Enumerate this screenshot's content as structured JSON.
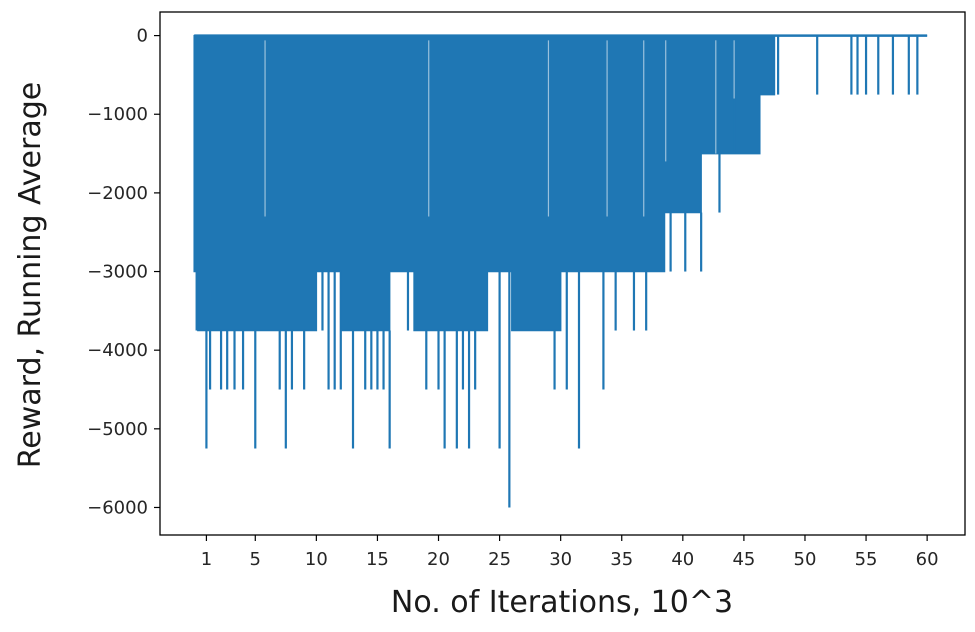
{
  "chart_data": {
    "type": "line",
    "title": "",
    "xlabel": "No. of Iterations, 10^3",
    "ylabel": "Reward, Running Average",
    "xlim": [
      -2.8,
      63.1
    ],
    "ylim": [
      -6350,
      300
    ],
    "xticks": [
      1,
      5,
      10,
      15,
      20,
      25,
      30,
      35,
      40,
      45,
      50,
      55,
      60
    ],
    "yticks": [
      0,
      -1000,
      -2000,
      -3000,
      -4000,
      -5000,
      -6000
    ],
    "xtick_labels": [
      "1",
      "5",
      "10",
      "15",
      "20",
      "25",
      "30",
      "35",
      "40",
      "45",
      "50",
      "55",
      "60"
    ],
    "ytick_labels": [
      "0",
      "−1000",
      "−2000",
      "−3000",
      "−4000",
      "−5000",
      "−6000"
    ],
    "grid": false,
    "legend": "none",
    "series": [
      {
        "color": "#1f77b4",
        "x_start": 0,
        "x_end": 60,
        "top_value": 0,
        "note_style": "dense oscillation between 0 and a lower envelope",
        "base_envelope": [
          [
            0,
            -3000
          ],
          [
            0.3,
            -3750
          ],
          [
            2,
            -3750
          ],
          [
            4,
            -3750
          ],
          [
            6,
            -3750
          ],
          [
            8,
            -3750
          ],
          [
            10,
            -3000
          ],
          [
            12,
            -3750
          ],
          [
            14,
            -3750
          ],
          [
            16,
            -3000
          ],
          [
            17,
            -3000
          ],
          [
            18,
            -3750
          ],
          [
            20,
            -3750
          ],
          [
            22,
            -3750
          ],
          [
            24,
            -3000
          ],
          [
            26,
            -3750
          ],
          [
            28,
            -3750
          ],
          [
            30,
            -3000
          ],
          [
            32,
            -3000
          ],
          [
            34,
            -3000
          ],
          [
            36,
            -3000
          ],
          [
            37.5,
            -3000
          ],
          [
            38.5,
            -2250
          ],
          [
            40,
            -2250
          ],
          [
            41.5,
            -1500
          ],
          [
            43,
            -1500
          ],
          [
            44.5,
            -1500
          ],
          [
            46,
            -1500
          ],
          [
            46.3,
            -750
          ],
          [
            47,
            -750
          ],
          [
            47.5,
            0
          ],
          [
            60,
            0
          ]
        ],
        "spikes": [
          [
            0.2,
            -3750
          ],
          [
            1.0,
            -5250
          ],
          [
            1.3,
            -4500
          ],
          [
            2.2,
            -4500
          ],
          [
            2.7,
            -4500
          ],
          [
            3.3,
            -4500
          ],
          [
            4.0,
            -4500
          ],
          [
            5.0,
            -5250
          ],
          [
            6.0,
            -3750
          ],
          [
            7.0,
            -4500
          ],
          [
            7.5,
            -5250
          ],
          [
            8.0,
            -4500
          ],
          [
            9.0,
            -4500
          ],
          [
            10.5,
            -3750
          ],
          [
            11.0,
            -4500
          ],
          [
            11.5,
            -4500
          ],
          [
            12.0,
            -4500
          ],
          [
            13.0,
            -5250
          ],
          [
            14.0,
            -4500
          ],
          [
            14.5,
            -4500
          ],
          [
            15.0,
            -4500
          ],
          [
            15.5,
            -4500
          ],
          [
            16.0,
            -5250
          ],
          [
            17.5,
            -3750
          ],
          [
            19.0,
            -4500
          ],
          [
            20.0,
            -4500
          ],
          [
            20.5,
            -5250
          ],
          [
            21.5,
            -5250
          ],
          [
            22.0,
            -4500
          ],
          [
            22.5,
            -5250
          ],
          [
            23.0,
            -4500
          ],
          [
            24.0,
            -3750
          ],
          [
            25.0,
            -5250
          ],
          [
            25.8,
            -6000
          ],
          [
            27.0,
            -3750
          ],
          [
            29.5,
            -4500
          ],
          [
            30.5,
            -4500
          ],
          [
            31.5,
            -5250
          ],
          [
            33.5,
            -4500
          ],
          [
            34.5,
            -3750
          ],
          [
            36.0,
            -3750
          ],
          [
            37.0,
            -3750
          ],
          [
            39.0,
            -3000
          ],
          [
            40.2,
            -3000
          ],
          [
            41.5,
            -3000
          ],
          [
            43.0,
            -2250
          ],
          [
            44.2,
            -800
          ],
          [
            47.8,
            -750
          ],
          [
            51.0,
            -750
          ],
          [
            53.8,
            -750
          ],
          [
            54.3,
            -750
          ],
          [
            55.0,
            -750
          ],
          [
            56.0,
            -750
          ],
          [
            57.2,
            -750
          ],
          [
            58.5,
            -750
          ],
          [
            59.2,
            -750
          ]
        ],
        "gaps": [
          [
            5.8,
            -2300
          ],
          [
            19.2,
            -2300
          ],
          [
            29.0,
            -2300
          ],
          [
            33.8,
            -2300
          ],
          [
            36.8,
            -2300
          ],
          [
            38.6,
            -1600
          ],
          [
            42.7,
            -1500
          ],
          [
            44.2,
            -800
          ]
        ]
      }
    ]
  }
}
